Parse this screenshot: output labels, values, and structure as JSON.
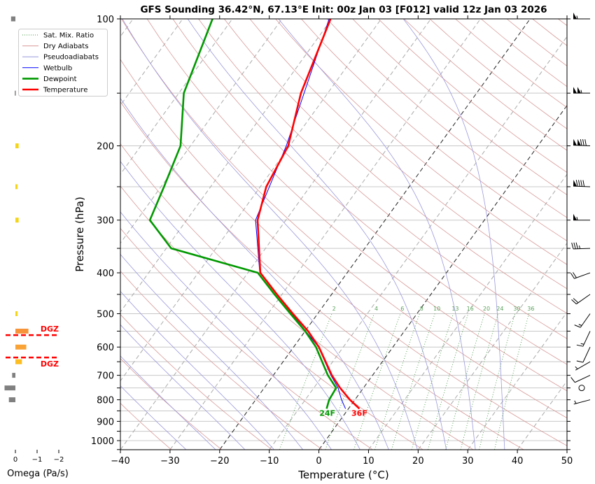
{
  "chart_data": {
    "type": "line",
    "title": "GFS Sounding 36.42°N, 67.13°E Init: 00z Jan 03 [F012] valid 12z Jan 03 2026",
    "xlabel": "Temperature (°C)",
    "ylabel": "Pressure (hPa)",
    "xlim": [
      -40,
      50
    ],
    "ylim": [
      1050,
      100
    ],
    "x_ticks": [
      "−40",
      "−30",
      "−20",
      "−10",
      "0",
      "10",
      "20",
      "30",
      "40",
      "50"
    ],
    "x_tick_values": [
      -40,
      -30,
      -20,
      -10,
      0,
      10,
      20,
      30,
      40,
      50
    ],
    "y_ticks": [
      "100",
      "200",
      "300",
      "400",
      "500",
      "600",
      "700",
      "800",
      "900",
      "1000"
    ],
    "y_tick_values": [
      100,
      200,
      300,
      400,
      500,
      600,
      700,
      800,
      900,
      1000
    ],
    "legend": {
      "placement": "top-left",
      "entries": [
        "Sat. Mix. Ratio",
        "Dry Adiabats",
        "Pseudoadiabats",
        "Wetbulb",
        "Dewpoint",
        "Temperature"
      ]
    },
    "series": [
      {
        "name": "Temperature",
        "color": "#ff0000",
        "pressure": [
          100,
          150,
          200,
          250,
          300,
          400,
          450,
          500,
          550,
          600,
          700,
          750,
          800,
          840
        ],
        "values": [
          -60.2,
          -55.4,
          -50.3,
          -48.8,
          -45.7,
          -37.5,
          -31.0,
          -25.0,
          -19.4,
          -14.9,
          -8.2,
          -4.7,
          -1.0,
          2.2
        ]
      },
      {
        "name": "Dewpoint",
        "color": "#009900",
        "pressure": [
          100,
          150,
          200,
          250,
          300,
          350,
          400,
          450,
          500,
          550,
          600,
          700,
          750,
          800,
          840
        ],
        "values": [
          -84,
          -79,
          -72,
          -69.4,
          -67.4,
          -59,
          -38,
          -31.5,
          -25.5,
          -20,
          -15.5,
          -9,
          -5.5,
          -5.2,
          -4.4
        ]
      },
      {
        "name": "Wetbulb",
        "color": "#0000ff",
        "pressure": [
          100,
          200,
          300,
          400,
          500,
          600,
          700,
          750,
          800,
          840
        ],
        "values": [
          -60.5,
          -50.7,
          -46.1,
          -37.6,
          -25.2,
          -15.0,
          -8.4,
          -5.1,
          -2.7,
          -0.6
        ]
      }
    ],
    "surface_labels": {
      "dewpoint": "24F",
      "temperature": "36F"
    },
    "mixing_ratio_labels": [
      "2",
      "4",
      "6",
      "8",
      "10",
      "13",
      "16",
      "20",
      "24",
      "30",
      "36"
    ],
    "mixing_ratio_values": [
      2,
      4,
      6,
      8,
      10,
      13,
      16,
      20,
      24,
      30,
      36
    ],
    "wind_barbs": [
      {
        "p": 100,
        "dir": 270,
        "kt": 55
      },
      {
        "p": 150,
        "dir": 270,
        "kt": 105
      },
      {
        "p": 200,
        "dir": 272,
        "kt": 130
      },
      {
        "p": 250,
        "dir": 272,
        "kt": 90
      },
      {
        "p": 300,
        "dir": 270,
        "kt": 55
      },
      {
        "p": 350,
        "dir": 268,
        "kt": 35
      },
      {
        "p": 400,
        "dir": 250,
        "kt": 20
      },
      {
        "p": 450,
        "dir": 235,
        "kt": 20
      },
      {
        "p": 500,
        "dir": 215,
        "kt": 15
      },
      {
        "p": 550,
        "dir": 205,
        "kt": 15
      },
      {
        "p": 600,
        "dir": 205,
        "kt": 10
      },
      {
        "p": 650,
        "dir": 240,
        "kt": 5
      },
      {
        "p": 700,
        "dir": 245,
        "kt": 10
      },
      {
        "p": 750,
        "dir": 0,
        "kt": 0
      },
      {
        "p": 800,
        "dir": 255,
        "kt": 5
      }
    ],
    "omega": {
      "xlabel": "Omega (Pa/s)",
      "x_ticks": [
        "0",
        "−1",
        "−2"
      ],
      "x_tick_values": [
        0,
        -1,
        -2
      ],
      "bars": [
        {
          "p": 100,
          "value": 0.2,
          "color": "#808080"
        },
        {
          "p": 150,
          "value": 0.03,
          "color": "#808080"
        },
        {
          "p": 200,
          "value": -0.15,
          "color": "#f5d51a"
        },
        {
          "p": 250,
          "value": -0.1,
          "color": "#f5d51a"
        },
        {
          "p": 300,
          "value": -0.15,
          "color": "#f5d51a"
        },
        {
          "p": 500,
          "value": -0.1,
          "color": "#f5d51a"
        },
        {
          "p": 550,
          "value": -0.6,
          "color": "#f7943a"
        },
        {
          "p": 600,
          "value": -0.5,
          "color": "#f9a236"
        },
        {
          "p": 650,
          "value": -0.3,
          "color": "#fbbd22"
        },
        {
          "p": 700,
          "value": 0.15,
          "color": "#808080"
        },
        {
          "p": 750,
          "value": 0.5,
          "color": "#808080"
        },
        {
          "p": 800,
          "value": 0.3,
          "color": "#808080"
        }
      ],
      "dgz": {
        "top_p": 562,
        "bottom_p": 635,
        "label": "DGZ",
        "color": "#ff0000"
      }
    }
  }
}
